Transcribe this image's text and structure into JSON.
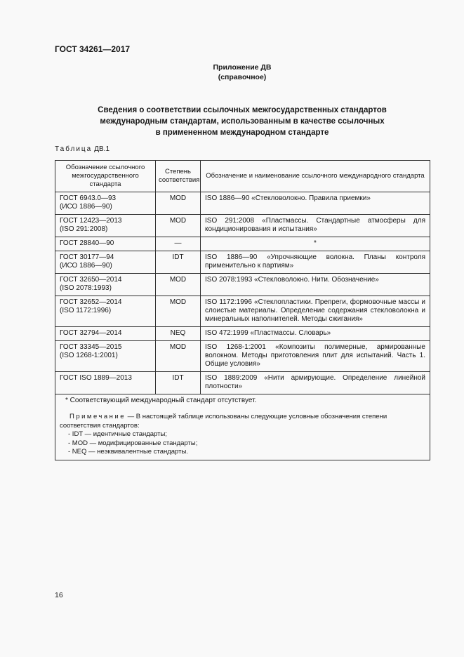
{
  "document": {
    "standard_number": "ГОСТ 34261—2017",
    "appendix_label": "Приложение ДВ",
    "appendix_kind": "(справочное)",
    "title": "Сведения о соответствии ссылочных межгосударственных стандартов\nмеждународным стандартам, использованным в качестве ссылочных\nв примененном международном стандарте",
    "table_label_word": "Таблица",
    "table_label_number": "ДВ.1",
    "page_number": "16"
  },
  "table": {
    "headers": [
      "Обозначение ссылочного межгосударственного стандарта",
      "Степень соответствия",
      "Обозначение и наименование ссылочного международного стандарта"
    ],
    "rows": [
      {
        "gost": "ГОСТ 6943.0—93\n(ИСО 1886—90)",
        "degree": "MOD",
        "iso": "ISO 1886—90 «Стекловолокно. Правила приемки»"
      },
      {
        "gost": "ГОСТ 12423—2013\n(ISO 291:2008)",
        "degree": "MOD",
        "iso": "ISO 291:2008 «Пластмассы. Стандартные атмосферы для кондиционирования и испытания»"
      },
      {
        "gost": "ГОСТ 28840—90",
        "degree": "—",
        "iso": "*"
      },
      {
        "gost": "ГОСТ 30177—94\n(ИСО 1886—90)",
        "degree": "IDT",
        "iso": "ISO 1886—90 «Упрочняющие волокна. Планы контроля применительно к партиям»"
      },
      {
        "gost": "ГОСТ 32650—2014\n(ISO 2078:1993)",
        "degree": "MOD",
        "iso": "ISO 2078:1993 «Стекловолокно. Нити. Обозначение»"
      },
      {
        "gost": "ГОСТ 32652—2014\n(ISO 1172:1996)",
        "degree": "MOD",
        "iso": "ISO 1172:1996 «Стеклопластики. Препреги, формовочные массы и слоистые материалы. Определение содержания стекловолокна и минеральных наполнителей. Методы сжигания»"
      },
      {
        "gost": "ГОСТ 32794—2014",
        "degree": "NEQ",
        "iso": "ISO 472:1999 «Пластмассы. Словарь»"
      },
      {
        "gost": "ГОСТ 33345—2015\n(ISO 1268-1:2001)",
        "degree": "MOD",
        "iso": "ISO 1268-1:2001 «Композиты полимерные, армированные волокном. Методы приготовления плит для испытаний. Часть 1. Общие условия»"
      },
      {
        "gost": "ГОСТ ISO 1889—2013",
        "degree": "IDT",
        "iso": "ISO 1889:2009 «Нити армирующие. Определение линейной плотности»"
      }
    ],
    "footnote": "* Соответствующий международный стандарт отсутствует.",
    "note": {
      "label": "Примечание",
      "text": " — В настоящей таблице использованы следующие условные обозначения степени соответствия стандартов:",
      "items": [
        "- IDT — идентичные стандарты;",
        "- MOD — модифицированные стандарты;",
        "- NEQ — неэквивалентные стандарты."
      ]
    }
  }
}
